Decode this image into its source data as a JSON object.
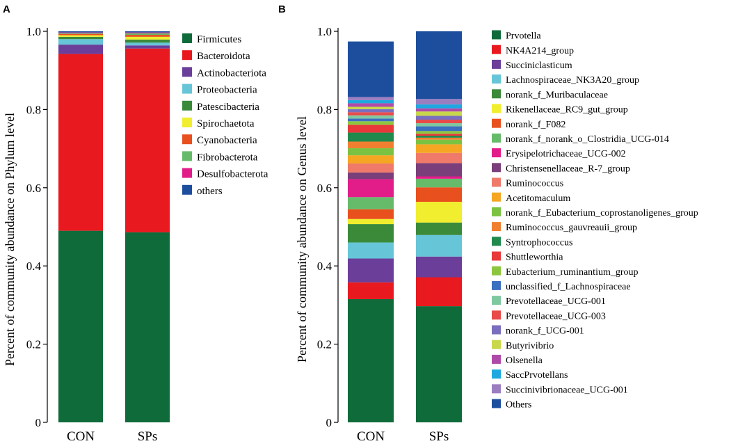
{
  "chart_data": [
    {
      "panel": "A",
      "type": "bar",
      "stacked": true,
      "ylabel": "Percent of community abundance on Phylum level",
      "xlabel": "",
      "ylim": [
        0,
        1.0
      ],
      "yticks": [
        "0",
        "0.2",
        "0.4",
        "0.6",
        "0.8",
        "1.0"
      ],
      "categories": [
        "CON",
        "SPs"
      ],
      "series": [
        {
          "name": "Firmicutes",
          "color": "#0f6b3a",
          "values": [
            0.49,
            0.486
          ]
        },
        {
          "name": "Bacteroidota",
          "color": "#e8191f",
          "values": [
            0.452,
            0.47
          ]
        },
        {
          "name": "Actinobacteriota",
          "color": "#6b3e9a",
          "values": [
            0.024,
            0.008
          ]
        },
        {
          "name": "Proteobacteria",
          "color": "#66c6d8",
          "values": [
            0.014,
            0.007
          ]
        },
        {
          "name": "Patescibacteria",
          "color": "#3a8a3a",
          "values": [
            0.006,
            0.008
          ]
        },
        {
          "name": "Spirochaetota",
          "color": "#f0ee2e",
          "values": [
            0.004,
            0.007
          ]
        },
        {
          "name": "Cyanobacteria",
          "color": "#e8501e",
          "values": [
            0.003,
            0.005
          ]
        },
        {
          "name": "Fibrobacterota",
          "color": "#66bb6a",
          "values": [
            0.002,
            0.004
          ]
        },
        {
          "name": "Desulfobacterota",
          "color": "#e21d8a",
          "values": [
            0.002,
            0.002
          ]
        },
        {
          "name": "others",
          "color": "#1d4e9e",
          "values": [
            0.003,
            0.003
          ]
        }
      ]
    },
    {
      "panel": "B",
      "type": "bar",
      "stacked": true,
      "ylabel": "Percent of community abundance on Genus level",
      "xlabel": "",
      "ylim": [
        0,
        1.0
      ],
      "yticks": [
        "0",
        "0.2",
        "0.4",
        "0.6",
        "0.8",
        "1.0"
      ],
      "categories": [
        "CON",
        "SPs"
      ],
      "series": [
        {
          "name": "Prvotella",
          "color": "#0f6b3a",
          "values": [
            0.315,
            0.297
          ]
        },
        {
          "name": "NK4A214_group",
          "color": "#e8191f",
          "values": [
            0.043,
            0.074
          ]
        },
        {
          "name": "Succiniclasticum",
          "color": "#6b3e9a",
          "values": [
            0.061,
            0.053
          ]
        },
        {
          "name": "Lachnospiraceae_NK3A20_group",
          "color": "#66c6d8",
          "values": [
            0.041,
            0.055
          ]
        },
        {
          "name": "norank_f_Muribaculaceae",
          "color": "#3a8a3a",
          "values": [
            0.047,
            0.032
          ]
        },
        {
          "name": "Rikenellaceae_RC9_gut_group",
          "color": "#f0ee2e",
          "values": [
            0.013,
            0.053
          ]
        },
        {
          "name": "norank_f_F082",
          "color": "#e8501e",
          "values": [
            0.025,
            0.037
          ]
        },
        {
          "name": "norank_f_norank_o_Clostridia_UCG-014",
          "color": "#66bb6a",
          "values": [
            0.031,
            0.022
          ]
        },
        {
          "name": "Erysipelotrichaceae_UCG-002",
          "color": "#e21d8a",
          "values": [
            0.046,
            0.006
          ]
        },
        {
          "name": "Christensenellaceae_R-7_group",
          "color": "#7a3f7a",
          "values": [
            0.017,
            0.034
          ]
        },
        {
          "name": "Ruminococcus",
          "color": "#f07a6a",
          "values": [
            0.023,
            0.026
          ]
        },
        {
          "name": "Acetitomaculum",
          "color": "#f5a623",
          "values": [
            0.021,
            0.022
          ]
        },
        {
          "name": "norank_f_Eubacterium_coprostanoligenes_group",
          "color": "#7cc242",
          "values": [
            0.018,
            0.012
          ]
        },
        {
          "name": "Ruminococcus_gauvreauii_group",
          "color": "#f08030",
          "values": [
            0.017,
            0.005
          ]
        },
        {
          "name": "Syntrophococcus",
          "color": "#1f8a4c",
          "values": [
            0.023,
            0.005
          ]
        },
        {
          "name": "Shuttleworthia",
          "color": "#e8383a",
          "values": [
            0.02,
            0.005
          ]
        },
        {
          "name": "Eubacterium_ruminantium_group",
          "color": "#8cc63f",
          "values": [
            0.009,
            0.007
          ]
        },
        {
          "name": "unclassified_f_Lachnospiraceae",
          "color": "#3b6fc0",
          "values": [
            0.007,
            0.012
          ]
        },
        {
          "name": "Prevotellaceae_UCG-001",
          "color": "#7fc8a0",
          "values": [
            0.008,
            0.008
          ]
        },
        {
          "name": "Prevotellaceae_UCG-003",
          "color": "#e84a4a",
          "values": [
            0.008,
            0.009
          ]
        },
        {
          "name": "norank_f_UCG-001",
          "color": "#7a6fbe",
          "values": [
            0.008,
            0.01
          ]
        },
        {
          "name": "Butyrivibrio",
          "color": "#c8d84a",
          "values": [
            0.006,
            0.011
          ]
        },
        {
          "name": "Olsenella",
          "color": "#b04aa8",
          "values": [
            0.009,
            0.008
          ]
        },
        {
          "name": "SaccPrvotellans",
          "color": "#1fa8e0",
          "values": [
            0.008,
            0.01
          ]
        },
        {
          "name": "Succinivibrionaceae_UCG-001",
          "color": "#9b7ec0",
          "values": [
            0.008,
            0.014
          ]
        },
        {
          "name": "Others",
          "color": "#1d4e9e",
          "values": [
            0.142,
            0.173
          ]
        }
      ]
    }
  ]
}
